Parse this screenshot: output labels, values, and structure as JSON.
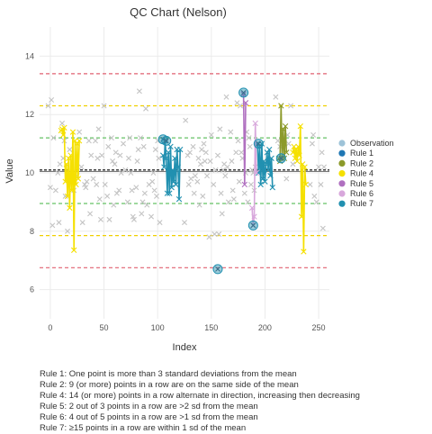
{
  "chart_data": {
    "type": "scatter",
    "title": "QC Chart (Nelson)",
    "xlabel": "Index",
    "ylabel": "Value",
    "xlim": [
      -10,
      260
    ],
    "ylim": [
      5,
      15
    ],
    "xticks": [
      0,
      50,
      100,
      150,
      200,
      250
    ],
    "yticks": [
      6,
      8,
      10,
      12,
      14
    ],
    "grid": true,
    "legend_position": "right",
    "control_lines": {
      "mean": 10.1,
      "median": 10.05,
      "sd1": [
        8.95,
        11.2
      ],
      "sd2": [
        7.85,
        12.3
      ],
      "sd3": [
        6.75,
        13.4
      ]
    },
    "colors": {
      "observation": "#aaaaaa",
      "rule1": "#1f77b4",
      "rule2": "#8c9a2a",
      "rule4": "#f5e000",
      "rule5": "#b070c0",
      "rule6": "#d8a8dc",
      "rule7": "#2190b0",
      "sd1": "#66c266",
      "sd2": "#f0d000",
      "sd3": "#e06070",
      "mean": "#222222"
    },
    "legend": [
      {
        "key": "observation",
        "label": "Observation"
      },
      {
        "key": "rule1",
        "label": "Rule 1"
      },
      {
        "key": "rule2",
        "label": "Rule 2"
      },
      {
        "key": "rule4",
        "label": "Rule 4"
      },
      {
        "key": "rule5",
        "label": "Rule 5"
      },
      {
        "key": "rule6",
        "label": "Rule 6"
      },
      {
        "key": "rule7",
        "label": "Rule 7"
      }
    ],
    "observations": [
      [
        -2,
        12.3
      ],
      [
        0,
        9.5
      ],
      [
        1,
        12.5
      ],
      [
        2,
        8.2
      ],
      [
        3,
        11.2
      ],
      [
        5,
        9.4
      ],
      [
        7,
        10.0
      ],
      [
        8,
        8.3
      ],
      [
        9,
        10.3
      ],
      [
        11,
        11.7
      ],
      [
        12,
        10.5
      ],
      [
        13,
        11.1
      ],
      [
        14,
        9.2
      ],
      [
        16,
        8.0
      ],
      [
        18,
        10.8
      ],
      [
        20,
        9.7
      ],
      [
        22,
        9.4
      ],
      [
        25,
        9.9
      ],
      [
        27,
        11.4
      ],
      [
        29,
        10.2
      ],
      [
        30,
        8.3
      ],
      [
        32,
        9.6
      ],
      [
        33,
        9.5
      ],
      [
        34,
        9.7
      ],
      [
        36,
        11.1
      ],
      [
        37,
        8.6
      ],
      [
        38,
        10.6
      ],
      [
        40,
        9.8
      ],
      [
        42,
        11.1
      ],
      [
        43,
        9.6
      ],
      [
        44,
        10.5
      ],
      [
        45,
        11.5
      ],
      [
        46,
        9.1
      ],
      [
        47,
        8.4
      ],
      [
        48,
        10.6
      ],
      [
        50,
        12.3
      ],
      [
        51,
        9.6
      ],
      [
        53,
        9.2
      ],
      [
        54,
        10.9
      ],
      [
        55,
        8.4
      ],
      [
        57,
        11.2
      ],
      [
        58,
        10.4
      ],
      [
        59,
        8.9
      ],
      [
        60,
        10.3
      ],
      [
        61,
        10.7
      ],
      [
        62,
        9.3
      ],
      [
        64,
        9.4
      ],
      [
        65,
        10.6
      ],
      [
        66,
        10.0
      ],
      [
        68,
        11.0
      ],
      [
        70,
        10.1
      ],
      [
        72,
        9.0
      ],
      [
        73,
        10.5
      ],
      [
        74,
        11.2
      ],
      [
        75,
        10.0
      ],
      [
        76,
        9.4
      ],
      [
        77,
        8.5
      ],
      [
        78,
        8.4
      ],
      [
        80,
        9.5
      ],
      [
        81,
        10.4
      ],
      [
        82,
        10.8
      ],
      [
        83,
        12.8
      ],
      [
        84,
        11.2
      ],
      [
        85,
        8.6
      ],
      [
        86,
        9.0
      ],
      [
        87,
        10.9
      ],
      [
        88,
        9.3
      ],
      [
        89,
        12.2
      ],
      [
        90,
        8.9
      ],
      [
        92,
        9.6
      ],
      [
        94,
        8.5
      ],
      [
        95,
        9.7
      ],
      [
        96,
        10.0
      ],
      [
        97,
        9.4
      ],
      [
        98,
        10.8
      ],
      [
        99,
        9.2
      ],
      [
        100,
        11.1
      ],
      [
        101,
        10.5
      ],
      [
        102,
        8.3
      ],
      [
        125,
        8.3
      ],
      [
        126,
        11.8
      ],
      [
        128,
        10.6
      ],
      [
        129,
        9.6
      ],
      [
        130,
        10.7
      ],
      [
        131,
        9.8
      ],
      [
        133,
        10.9
      ],
      [
        134,
        9.3
      ],
      [
        135,
        9.9
      ],
      [
        137,
        9.7
      ],
      [
        138,
        10.5
      ],
      [
        139,
        8.9
      ],
      [
        140,
        10.3
      ],
      [
        141,
        10.8
      ],
      [
        142,
        9.2
      ],
      [
        143,
        11.0
      ],
      [
        144,
        10.4
      ],
      [
        145,
        10.7
      ],
      [
        146,
        9.9
      ],
      [
        148,
        7.8
      ],
      [
        149,
        10.4
      ],
      [
        150,
        11.3
      ],
      [
        152,
        9.6
      ],
      [
        153,
        7.9
      ],
      [
        154,
        10.1
      ],
      [
        156,
        10.6
      ],
      [
        157,
        7.9
      ],
      [
        158,
        11.5
      ],
      [
        159,
        9.3
      ],
      [
        160,
        8.6
      ],
      [
        161,
        10.1
      ],
      [
        162,
        10.3
      ],
      [
        163,
        9.9
      ],
      [
        164,
        12.6
      ],
      [
        165,
        10.2
      ],
      [
        166,
        9.0
      ],
      [
        168,
        11.4
      ],
      [
        169,
        10.4
      ],
      [
        170,
        9.4
      ],
      [
        171,
        9.1
      ],
      [
        173,
        10.7
      ],
      [
        174,
        12.4
      ],
      [
        175,
        11.1
      ],
      [
        176,
        9.7
      ],
      [
        177,
        12.3
      ],
      [
        178,
        10.7
      ],
      [
        179,
        10.5
      ],
      [
        181,
        9.3
      ],
      [
        182,
        10.0
      ],
      [
        183,
        11.4
      ],
      [
        184,
        9.0
      ],
      [
        185,
        11.2
      ],
      [
        186,
        10.9
      ],
      [
        187,
        9.6
      ],
      [
        188,
        10.1
      ],
      [
        189,
        10.0
      ],
      [
        190,
        9.4
      ],
      [
        191,
        10.2
      ],
      [
        210,
        12.6
      ],
      [
        212,
        11.1
      ],
      [
        214,
        10.9
      ],
      [
        220,
        9.8
      ],
      [
        221,
        11.3
      ],
      [
        222,
        11.0
      ],
      [
        224,
        12.3
      ],
      [
        226,
        10.3
      ],
      [
        242,
        9.6
      ],
      [
        244,
        11.0
      ],
      [
        245,
        11.3
      ],
      [
        246,
        9.2
      ],
      [
        248,
        9.0
      ],
      [
        250,
        10.2
      ],
      [
        252,
        9.6
      ],
      [
        253,
        10.7
      ],
      [
        254,
        8.1
      ],
      [
        255,
        10.2
      ]
    ],
    "rule_series": [
      {
        "key": "rule4",
        "points": [
          [
            10,
            11.45
          ],
          [
            11,
            11.5
          ],
          [
            12,
            11.3
          ],
          [
            13,
            11.55
          ],
          [
            14,
            9.7
          ],
          [
            15,
            10.3
          ],
          [
            16,
            9.2
          ],
          [
            17,
            10.5
          ],
          [
            18,
            8.8
          ],
          [
            19,
            10.6
          ],
          [
            20,
            9.4
          ],
          [
            21,
            11.4
          ],
          [
            22,
            7.35
          ],
          [
            23,
            11.1
          ],
          [
            24,
            9.6
          ],
          [
            25,
            11.0
          ],
          [
            26,
            9.8
          ],
          [
            27,
            11.1
          ]
        ]
      },
      {
        "key": "rule4",
        "points": [
          [
            226,
            10.7
          ],
          [
            227,
            10.9
          ],
          [
            228,
            10.5
          ],
          [
            229,
            10.8
          ],
          [
            230,
            10.4
          ],
          [
            231,
            10.9
          ],
          [
            232,
            10.6
          ],
          [
            233,
            11.6
          ],
          [
            234,
            8.5
          ],
          [
            235,
            10.3
          ],
          [
            236,
            7.3
          ],
          [
            237,
            10.2
          ],
          [
            238,
            9.6
          ]
        ]
      },
      {
        "key": "rule7",
        "points": [
          [
            105,
            10.6
          ],
          [
            106,
            10.2
          ],
          [
            107,
            11.1
          ],
          [
            108,
            10.5
          ],
          [
            109,
            9.3
          ],
          [
            110,
            10.7
          ],
          [
            111,
            9.3
          ],
          [
            112,
            10.9
          ],
          [
            113,
            9.5
          ],
          [
            114,
            10.1
          ],
          [
            115,
            9.7
          ],
          [
            116,
            10.5
          ],
          [
            117,
            9.6
          ],
          [
            118,
            10.8
          ],
          [
            119,
            10.2
          ],
          [
            120,
            9.1
          ],
          [
            121,
            10.8
          ]
        ]
      },
      {
        "key": "rule7",
        "points": [
          [
            193,
            11.0
          ],
          [
            194,
            10.0
          ],
          [
            195,
            10.9
          ],
          [
            196,
            9.6
          ],
          [
            197,
            11.0
          ],
          [
            198,
            9.8
          ],
          [
            199,
            10.4
          ],
          [
            200,
            9.7
          ],
          [
            201,
            10.3
          ],
          [
            202,
            10.7
          ],
          [
            203,
            10.1
          ],
          [
            204,
            10.8
          ],
          [
            205,
            9.9
          ],
          [
            206,
            10.5
          ],
          [
            207,
            9.5
          ]
        ]
      },
      {
        "key": "rule2",
        "points": [
          [
            213,
            10.5
          ],
          [
            214,
            10.4
          ],
          [
            215,
            12.3
          ],
          [
            216,
            10.5
          ],
          [
            217,
            11.5
          ],
          [
            218,
            10.5
          ],
          [
            219,
            11.6
          ],
          [
            220,
            10.7
          ]
        ]
      },
      {
        "key": "rule5",
        "points": [
          [
            180,
            12.7
          ],
          [
            181,
            9.6
          ],
          [
            182,
            12.4
          ]
        ]
      },
      {
        "key": "rule6",
        "points": [
          [
            188,
            8.8
          ],
          [
            189,
            8.2
          ],
          [
            190,
            8.5
          ],
          [
            191,
            11.7
          ],
          [
            192,
            10.0
          ]
        ]
      }
    ],
    "rule1_points": [
      [
        105,
        11.15
      ],
      [
        108,
        11.1
      ],
      [
        156,
        6.7
      ],
      [
        180,
        12.75
      ],
      [
        189,
        8.2
      ],
      [
        194,
        11.0
      ],
      [
        215,
        10.5
      ]
    ]
  },
  "notes": [
    "Rule 1: One point is more than 3 standard deviations from the mean",
    "Rule 2: 9 (or more) points in a row are on the same side of the mean",
    "Rule 4: 14 (or more) points in a row alternate in direction, increasing then decreasing",
    "Rule 5: 2 out of 3 points in a row are >2 sd from the mean",
    "Rule 6: 4 out of 5 points in a row are >1 sd from the mean",
    "Rule 7: ≥15 points in a row are within 1 sd of the mean"
  ]
}
